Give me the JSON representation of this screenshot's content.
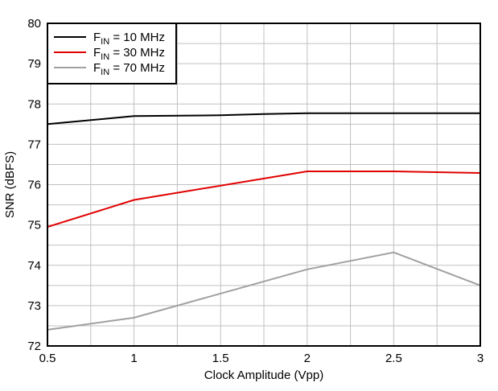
{
  "chart_data": {
    "type": "line",
    "title": "",
    "xlabel": "Clock Amplitude (Vpp)",
    "ylabel": "SNR (dBFS)",
    "xlim": [
      0.5,
      3
    ],
    "ylim": [
      72,
      80
    ],
    "x_ticks": [
      "0.5",
      "1",
      "1.5",
      "2",
      "2.5",
      "3"
    ],
    "y_ticks": [
      "72",
      "73",
      "74",
      "75",
      "76",
      "77",
      "78",
      "79",
      "80"
    ],
    "grid": true,
    "legend_position": "top-left",
    "series": [
      {
        "name": "F_IN = 10 MHz",
        "legend": {
          "main": "F",
          "sub": "IN",
          "rest": " = 10 MHz"
        },
        "color": "#000000",
        "x": [
          0.5,
          1,
          1.5,
          1.75,
          2,
          2.5,
          3
        ],
        "y": [
          77.5,
          77.7,
          77.72,
          77.75,
          77.77,
          77.77,
          77.77
        ]
      },
      {
        "name": "F_IN = 30 MHz",
        "legend": {
          "main": "F",
          "sub": "IN",
          "rest": " = 30 MHz"
        },
        "color": "#e00000",
        "x": [
          0.5,
          1,
          2,
          2.5,
          3
        ],
        "y": [
          74.95,
          75.62,
          76.33,
          76.33,
          76.29
        ]
      },
      {
        "name": "F_IN = 70 MHz",
        "legend": {
          "main": "F",
          "sub": "IN",
          "rest": " = 70 MHz"
        },
        "color": "#a0a0a0",
        "x": [
          0.5,
          1,
          2,
          2.5,
          3
        ],
        "y": [
          72.4,
          72.7,
          73.9,
          74.32,
          73.5
        ]
      }
    ]
  }
}
